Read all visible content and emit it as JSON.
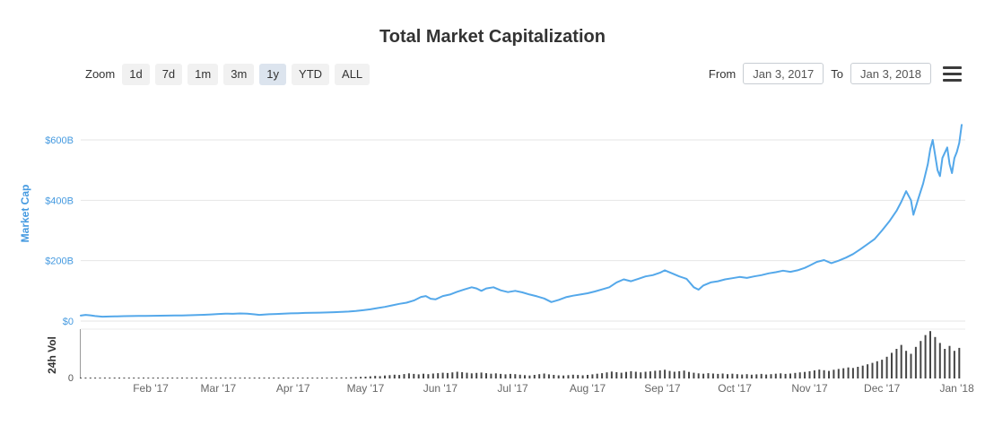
{
  "chart": {
    "title": "Total Market Capitalization"
  },
  "toolbar": {
    "zoom_label": "Zoom",
    "zoom_buttons": [
      {
        "label": "1d",
        "selected": false
      },
      {
        "label": "7d",
        "selected": false
      },
      {
        "label": "1m",
        "selected": false
      },
      {
        "label": "3m",
        "selected": false
      },
      {
        "label": "1y",
        "selected": true
      },
      {
        "label": "YTD",
        "selected": false
      },
      {
        "label": "ALL",
        "selected": false
      }
    ],
    "from_label": "From",
    "from_value": "Jan 3, 2017",
    "to_label": "To",
    "to_value": "Jan 3, 2018"
  },
  "colors": {
    "line": "#54a8ea",
    "axis_label_blue": "#459ae0",
    "volume_bar": "#454545",
    "grid": "#e6e6e6",
    "vol_axis_line": "#9a9a9a",
    "text_dark": "#333333",
    "text_gray": "#666666",
    "button_bg": "#f1f1f1",
    "button_selected_bg": "#dce4ee"
  },
  "chart_data": {
    "type": "line+bar",
    "title": "Total Market Capitalization",
    "x_axis": {
      "start": "Jan 3, 2017",
      "end": "Jan 3, 2018",
      "unit": "day offset from Jan 3, 2017",
      "month_ticks": [
        {
          "label": "Feb '17",
          "day": 29
        },
        {
          "label": "Mar '17",
          "day": 57
        },
        {
          "label": "Apr '17",
          "day": 88
        },
        {
          "label": "May '17",
          "day": 118
        },
        {
          "label": "Jun '17",
          "day": 149
        },
        {
          "label": "Jul '17",
          "day": 179
        },
        {
          "label": "Aug '17",
          "day": 210
        },
        {
          "label": "Sep '17",
          "day": 241
        },
        {
          "label": "Oct '17",
          "day": 271
        },
        {
          "label": "Nov '17",
          "day": 302
        },
        {
          "label": "Dec '17",
          "day": 332
        },
        {
          "label": "Jan '18",
          "day": 363
        }
      ]
    },
    "market_cap": {
      "type": "line",
      "name": "Market Cap",
      "ylabel": "Market Cap",
      "unit": "USD billions",
      "ylim": [
        0,
        660
      ],
      "yticks": [
        {
          "label": "$0",
          "value": 0
        },
        {
          "label": "$200B",
          "value": 200
        },
        {
          "label": "$400B",
          "value": 400
        },
        {
          "label": "$600B",
          "value": 600
        }
      ],
      "points": [
        [
          0,
          18
        ],
        [
          2,
          20.5
        ],
        [
          4,
          19
        ],
        [
          6,
          16.5
        ],
        [
          9,
          14.5
        ],
        [
          12,
          15.2
        ],
        [
          15,
          15.6
        ],
        [
          18,
          16.2
        ],
        [
          21,
          16.6
        ],
        [
          24,
          17
        ],
        [
          27,
          17.2
        ],
        [
          30,
          17.5
        ],
        [
          33,
          17.8
        ],
        [
          36,
          18
        ],
        [
          39,
          18.3
        ],
        [
          42,
          18.6
        ],
        [
          45,
          19.2
        ],
        [
          48,
          19.8
        ],
        [
          51,
          20.8
        ],
        [
          54,
          22
        ],
        [
          57,
          23.6
        ],
        [
          60,
          24.6
        ],
        [
          63,
          24.2
        ],
        [
          66,
          25.1
        ],
        [
          69,
          24.6
        ],
        [
          72,
          22.2
        ],
        [
          74,
          20.6
        ],
        [
          78,
          22.6
        ],
        [
          81,
          23.6
        ],
        [
          84,
          24.6
        ],
        [
          87,
          25.4
        ],
        [
          90,
          26.2
        ],
        [
          93,
          27
        ],
        [
          96,
          27.4
        ],
        [
          99,
          28
        ],
        [
          102,
          28.6
        ],
        [
          105,
          29.4
        ],
        [
          108,
          30.2
        ],
        [
          111,
          31.6
        ],
        [
          114,
          33.4
        ],
        [
          117,
          36
        ],
        [
          120,
          39
        ],
        [
          123,
          43
        ],
        [
          126,
          47
        ],
        [
          129,
          52
        ],
        [
          132,
          57
        ],
        [
          135,
          61
        ],
        [
          138,
          68
        ],
        [
          141,
          80
        ],
        [
          143,
          83
        ],
        [
          145,
          74
        ],
        [
          147,
          72
        ],
        [
          150,
          83
        ],
        [
          153,
          88
        ],
        [
          156,
          97
        ],
        [
          159,
          105
        ],
        [
          162,
          112
        ],
        [
          164,
          108
        ],
        [
          166,
          100
        ],
        [
          168,
          108
        ],
        [
          171,
          112
        ],
        [
          174,
          102
        ],
        [
          177,
          96
        ],
        [
          180,
          100
        ],
        [
          183,
          95
        ],
        [
          186,
          88
        ],
        [
          189,
          82
        ],
        [
          192,
          75
        ],
        [
          195,
          63
        ],
        [
          198,
          70
        ],
        [
          201,
          79
        ],
        [
          204,
          84
        ],
        [
          207,
          88
        ],
        [
          210,
          92
        ],
        [
          213,
          98
        ],
        [
          216,
          105
        ],
        [
          219,
          112
        ],
        [
          222,
          128
        ],
        [
          225,
          138
        ],
        [
          228,
          132
        ],
        [
          231,
          140
        ],
        [
          234,
          148
        ],
        [
          237,
          152
        ],
        [
          240,
          160
        ],
        [
          242,
          168
        ],
        [
          245,
          158
        ],
        [
          248,
          148
        ],
        [
          251,
          140
        ],
        [
          254,
          112
        ],
        [
          256,
          104
        ],
        [
          258,
          118
        ],
        [
          261,
          128
        ],
        [
          264,
          132
        ],
        [
          267,
          138
        ],
        [
          270,
          142
        ],
        [
          273,
          146
        ],
        [
          276,
          143
        ],
        [
          279,
          148
        ],
        [
          282,
          152
        ],
        [
          285,
          158
        ],
        [
          288,
          162
        ],
        [
          291,
          167
        ],
        [
          294,
          163
        ],
        [
          297,
          168
        ],
        [
          300,
          176
        ],
        [
          302,
          184
        ],
        [
          305,
          196
        ],
        [
          308,
          202
        ],
        [
          311,
          192
        ],
        [
          314,
          200
        ],
        [
          317,
          210
        ],
        [
          320,
          222
        ],
        [
          323,
          238
        ],
        [
          326,
          255
        ],
        [
          329,
          272
        ],
        [
          332,
          300
        ],
        [
          335,
          330
        ],
        [
          338,
          365
        ],
        [
          340,
          395
        ],
        [
          342,
          430
        ],
        [
          344,
          400
        ],
        [
          345,
          352
        ],
        [
          347,
          405
        ],
        [
          349,
          455
        ],
        [
          351,
          520
        ],
        [
          352,
          570
        ],
        [
          353,
          600
        ],
        [
          355,
          500
        ],
        [
          356,
          480
        ],
        [
          357,
          540
        ],
        [
          359,
          575
        ],
        [
          360,
          520
        ],
        [
          361,
          490
        ],
        [
          362,
          540
        ],
        [
          363,
          560
        ],
        [
          364,
          590
        ],
        [
          365,
          650
        ]
      ]
    },
    "volume": {
      "type": "bar",
      "name": "24h Vol",
      "ylabel": "24h Vol",
      "unit": "USD billions",
      "ylim": [
        0,
        50
      ],
      "zero_label": "0",
      "start_day": 0,
      "step_days": 2,
      "values": [
        0.4,
        0.5,
        0.4,
        0.3,
        0.5,
        0.3,
        0.25,
        0.2,
        0.3,
        0.25,
        0.2,
        0.25,
        0.3,
        0.25,
        0.2,
        0.2,
        0.25,
        0.3,
        0.25,
        0.3,
        0.35,
        0.25,
        0.3,
        0.4,
        0.35,
        0.4,
        0.5,
        0.45,
        0.5,
        0.6,
        0.5,
        0.7,
        0.55,
        0.6,
        0.8,
        0.6,
        0.5,
        0.6,
        0.55,
        0.7,
        0.6,
        0.8,
        0.7,
        0.6,
        0.7,
        0.6,
        0.8,
        0.7,
        0.9,
        0.8,
        0.7,
        0.9,
        1.0,
        0.9,
        1.1,
        1.0,
        1.2,
        1.4,
        1.6,
        1.8,
        2.2,
        2.6,
        2.4,
        3.0,
        3.4,
        3.8,
        3.5,
        4.5,
        5.2,
        4.6,
        4.2,
        4.8,
        4.4,
        5.0,
        5.4,
        5.8,
        5.5,
        6.2,
        6.8,
        6.4,
        5.8,
        5.2,
        5.6,
        6.0,
        5.4,
        4.8,
        5.2,
        4.6,
        4.2,
        4.6,
        4.4,
        3.8,
        3.4,
        3.0,
        3.6,
        4.4,
        5.0,
        4.2,
        3.6,
        3.2,
        3.0,
        3.4,
        3.8,
        3.5,
        3.2,
        3.6,
        4.2,
        4.8,
        5.4,
        6.2,
        7.0,
        6.4,
        5.8,
        6.6,
        7.4,
        6.8,
        6.2,
        6.8,
        7.2,
        7.8,
        8.2,
        8.8,
        7.6,
        6.8,
        7.4,
        8.0,
        6.6,
        5.8,
        5.2,
        4.8,
        5.4,
        5.0,
        4.6,
        5.0,
        4.4,
        4.8,
        4.4,
        4.0,
        4.4,
        3.8,
        4.2,
        4.6,
        4.0,
        4.4,
        4.8,
        5.2,
        4.6,
        5.0,
        5.6,
        6.2,
        6.6,
        7.4,
        8.2,
        9.0,
        8.4,
        7.6,
        8.8,
        9.6,
        10.4,
        11.2,
        10.6,
        11.8,
        13.0,
        14.4,
        15.8,
        17.5,
        19,
        22,
        26,
        30,
        34,
        28,
        25,
        32,
        38,
        44,
        48,
        42,
        36,
        30,
        33,
        28,
        31
      ]
    }
  }
}
